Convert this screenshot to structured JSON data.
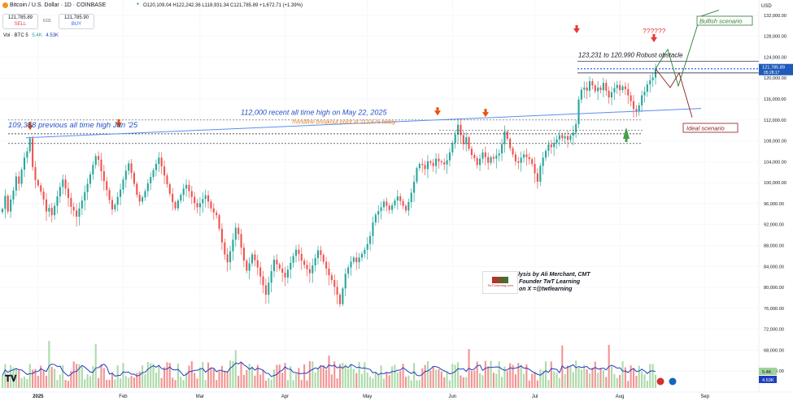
{
  "header": {
    "symbol": "Bitcoin / U.S. Dollar · 1D · COINBASE",
    "ohlc": "O120,109.04 H122,242.36 L118,931.34 C121,785.89 +1,672.71 (+1.39%)",
    "sell_price": "121,785.89",
    "sell_label": "SELL",
    "spread": "0.01",
    "buy_price": "121,785.90",
    "buy_label": "BUY",
    "vol_label": "Vol · BTC 5",
    "vol_a": "5.4K",
    "vol_b": "4.53K",
    "currency": "USD"
  },
  "colors": {
    "up": "#26a69a",
    "down": "#ef5350",
    "vol_up": "#9fd39b",
    "vol_down": "#f08080",
    "vol_line": "#1e3fbf",
    "price_tag": "#1e5bb8"
  },
  "chart_data": {
    "type": "candlestick",
    "ylim": [
      60000,
      134000
    ],
    "y_ticks": [
      "132,000.00",
      "128,000.00",
      "124,000.00",
      "120,000.00",
      "116,000.00",
      "112,000.00",
      "108,000.00",
      "104,000.00",
      "100,000.00",
      "96,000.00",
      "92,000.00",
      "88,000.00",
      "84,000.00",
      "80,000.00",
      "76,000.00",
      "72,000.00",
      "68,000.00",
      "64,000.00"
    ],
    "x_ticks": [
      "2025",
      "Feb",
      "Mar",
      "Apr",
      "May",
      "Jun",
      "Jul",
      "Aug",
      "Sep"
    ],
    "closes": [
      95000,
      97500,
      94500,
      96800,
      98500,
      101200,
      99800,
      102500,
      104800,
      106000,
      108500,
      103000,
      100500,
      99500,
      98300,
      96800,
      94500,
      95200,
      93800,
      95600,
      97400,
      99200,
      100600,
      98900,
      97100,
      95400,
      94700,
      93500,
      95100,
      96600,
      98200,
      99800,
      101600,
      103400,
      105100,
      104400,
      102200,
      100300,
      98600,
      96700,
      94900,
      95800,
      97300,
      98700,
      100600,
      102300,
      103700,
      101900,
      99800,
      97700,
      96400,
      97200,
      98400,
      99900,
      101100,
      102400,
      103600,
      104800,
      103100,
      101400,
      99700,
      97900,
      96300,
      95100,
      96600,
      97700,
      98900,
      99600,
      98400,
      97300,
      96100,
      95300,
      96100,
      96900,
      97600,
      96400,
      95100,
      94300,
      93800,
      91200,
      88600,
      86300,
      84800,
      86900,
      89100,
      91400,
      90200,
      87600,
      85100,
      83200,
      84600,
      86300,
      85200,
      83800,
      82100,
      80400,
      78600,
      80900,
      83100,
      85300,
      84400,
      83600,
      82800,
      81900,
      83400,
      84700,
      86000,
      87200,
      86400,
      85100,
      84300,
      83500,
      82700,
      84200,
      85600,
      87100,
      86200,
      84900,
      83600,
      82300,
      81400,
      80100,
      78600,
      76800,
      79800,
      82600,
      83800,
      84900,
      85700,
      84800,
      85700,
      86400,
      87200,
      88300,
      89800,
      92400,
      93900,
      94600,
      95300,
      96400,
      95600,
      94800,
      95700,
      96600,
      97400,
      96500,
      95600,
      94700,
      96300,
      98100,
      100200,
      102800,
      103600,
      103400,
      102600,
      104100,
      103800,
      103200,
      104600,
      104100,
      103900,
      103500,
      104300,
      105800,
      107600,
      109200,
      111100,
      109100,
      107400,
      108700,
      106500,
      105300,
      104700,
      103400,
      104600,
      105800,
      104900,
      103800,
      104900,
      104600,
      105200,
      105600,
      107400,
      109800,
      108400,
      106600,
      105400,
      104100,
      103800,
      104800,
      105400,
      104900,
      104500,
      103600,
      101800,
      100200,
      103200,
      104800,
      106100,
      107300,
      106800,
      107600,
      108300,
      109100,
      108500,
      108900,
      108200,
      109000,
      109600,
      111200,
      115900,
      117800,
      118200,
      117600,
      119400,
      118600,
      117500,
      118200,
      117700,
      119100,
      117600,
      116300,
      117300,
      118100,
      118700,
      117700,
      118400,
      117900,
      116700,
      115600,
      114100,
      113600,
      114800,
      116700,
      117400,
      118800,
      119600,
      120100,
      121785
    ]
  },
  "annotations": {
    "level_109": "109,358 previous all time high Jan '25",
    "level_112": "112,000 recent all time high on May 22, 2025",
    "trendline": "Trendline breakout point at 113,675 today",
    "obstacle": "123,231 to 120,990 Robust obstacle",
    "question": "??????",
    "bullish": "Bullish scenario",
    "ideal": "Ideal scenario",
    "credit_1": "Analysis by Ali Merchant, CMT",
    "credit_2": "Founder TwT Learning",
    "credit_3": "on X =@twtlearning",
    "logo_text": "TwTLearning.com"
  },
  "price_tag": {
    "price": "121,785.89",
    "countdown": "05:28:17"
  },
  "vol_tags": {
    "a": "5.4K",
    "b": "4.53K"
  }
}
